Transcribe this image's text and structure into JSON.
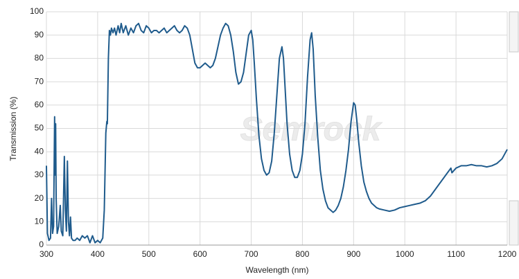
{
  "chart_data": {
    "type": "line",
    "xlabel": "Wavelength (nm)",
    "ylabel": "Transmission (%)",
    "watermark": "Semrock",
    "xlim": [
      300,
      1200
    ],
    "ylim": [
      0,
      100
    ],
    "xticks": [
      300,
      400,
      500,
      600,
      700,
      800,
      900,
      1000,
      1100,
      1200
    ],
    "yticks": [
      0,
      10,
      20,
      30,
      40,
      50,
      60,
      70,
      80,
      90,
      100
    ],
    "grid": true,
    "x": [
      300,
      302,
      305,
      308,
      310,
      312,
      314,
      316,
      317,
      318,
      319,
      321,
      324,
      327,
      329,
      332,
      335,
      337,
      339,
      341,
      343,
      345,
      347,
      349,
      352,
      356,
      360,
      365,
      370,
      375,
      380,
      385,
      390,
      395,
      400,
      405,
      410,
      413,
      416,
      418,
      419,
      421,
      423,
      425,
      427,
      430,
      433,
      436,
      440,
      443,
      446,
      450,
      455,
      460,
      465,
      470,
      475,
      480,
      485,
      490,
      495,
      500,
      505,
      510,
      515,
      520,
      525,
      530,
      535,
      540,
      545,
      550,
      555,
      560,
      565,
      570,
      575,
      580,
      585,
      590,
      595,
      600,
      605,
      610,
      615,
      620,
      625,
      630,
      635,
      640,
      645,
      650,
      655,
      660,
      665,
      670,
      675,
      680,
      685,
      690,
      695,
      700,
      703,
      706,
      710,
      715,
      720,
      725,
      730,
      735,
      740,
      745,
      750,
      755,
      760,
      763,
      766,
      770,
      775,
      780,
      785,
      790,
      795,
      800,
      805,
      810,
      815,
      818,
      821,
      825,
      830,
      835,
      840,
      845,
      850,
      855,
      860,
      865,
      870,
      875,
      880,
      885,
      890,
      895,
      900,
      903,
      906,
      910,
      915,
      920,
      925,
      930,
      935,
      940,
      945,
      950,
      960,
      970,
      980,
      990,
      1000,
      1010,
      1020,
      1030,
      1040,
      1050,
      1060,
      1070,
      1080,
      1090,
      1092,
      1100,
      1110,
      1120,
      1130,
      1140,
      1150,
      1160,
      1170,
      1180,
      1190,
      1200
    ],
    "series": [
      {
        "name": "Transmission",
        "color": "#1f5b8c",
        "values": [
          34,
          5,
          2,
          3,
          20,
          5,
          8,
          55,
          30,
          52,
          20,
          5,
          8,
          17,
          6,
          4,
          38,
          15,
          6,
          36,
          10,
          4,
          12,
          3,
          2,
          2,
          3,
          2,
          4,
          3,
          4,
          1,
          4,
          1,
          2,
          1,
          3,
          15,
          48,
          53,
          52,
          80,
          92,
          90,
          93,
          91,
          93,
          90,
          94,
          91,
          95,
          91,
          94,
          90,
          93,
          91,
          94,
          95,
          92,
          91,
          94,
          93,
          91,
          92,
          92,
          91,
          92,
          93,
          91,
          92,
          93,
          94,
          92,
          91,
          92,
          94,
          93,
          90,
          84,
          78,
          76,
          76,
          77,
          78,
          77,
          76,
          77,
          80,
          85,
          90,
          93,
          95,
          94,
          90,
          83,
          74,
          69,
          70,
          74,
          82,
          90,
          92,
          88,
          78,
          63,
          47,
          37,
          32,
          30,
          31,
          36,
          48,
          64,
          80,
          85,
          80,
          68,
          52,
          39,
          32,
          29,
          29,
          32,
          39,
          52,
          72,
          88,
          91,
          84,
          64,
          46,
          32,
          24,
          19,
          16,
          15,
          14,
          15,
          17,
          20,
          25,
          32,
          41,
          53,
          61,
          60,
          54,
          44,
          34,
          27,
          23,
          20,
          18,
          17,
          16,
          15.5,
          15,
          14.5,
          15,
          16,
          16.5,
          17,
          17.5,
          18,
          19,
          21,
          24,
          27,
          30,
          33,
          31,
          33,
          34,
          34,
          34.5,
          34,
          34,
          33.5,
          34,
          35,
          37,
          41
        ]
      }
    ]
  }
}
